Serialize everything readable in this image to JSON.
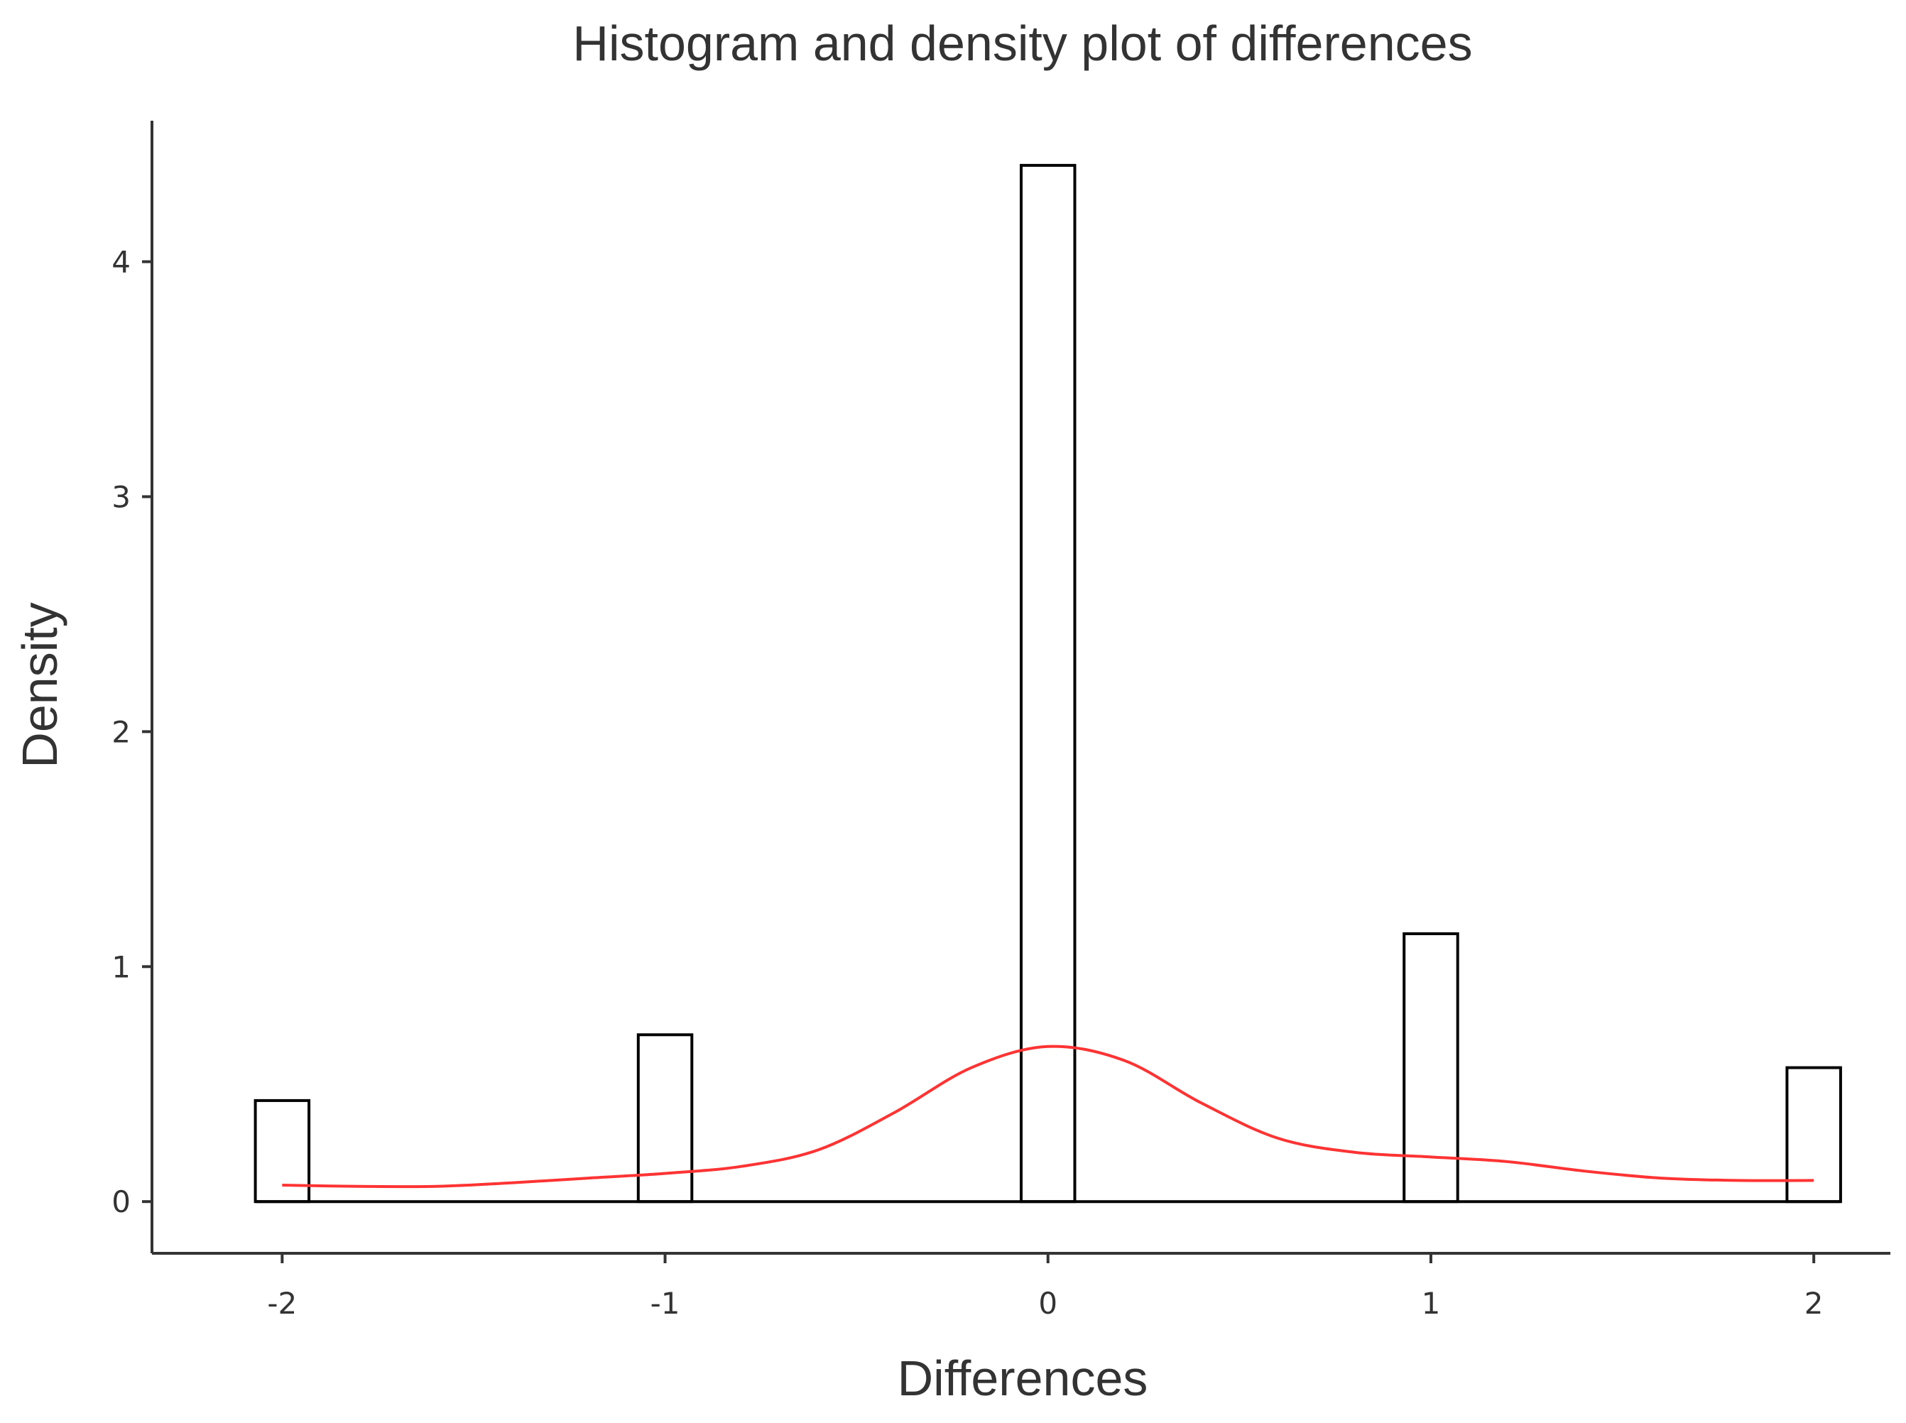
{
  "chart_data": {
    "type": "histogram",
    "title": "Histogram and density plot of differences",
    "xlabel": "Differences",
    "ylabel": "Density",
    "xlim": [
      -2.34,
      2.2
    ],
    "ylim": [
      -0.22,
      4.6
    ],
    "x_ticks": [
      -2,
      -1,
      0,
      1,
      2
    ],
    "x_tick_labels": [
      "-2",
      "-1",
      "0",
      "1",
      "2"
    ],
    "y_ticks": [
      0,
      1,
      2,
      3,
      4
    ],
    "y_tick_labels": [
      "0",
      "1",
      "2",
      "3",
      "4"
    ],
    "bin_width": 0.14,
    "bins": [
      {
        "center": -2.0,
        "density": 0.43
      },
      {
        "center": -1.0,
        "density": 0.71
      },
      {
        "center": 0.0,
        "density": 4.41
      },
      {
        "center": 1.0,
        "density": 1.14
      },
      {
        "center": 2.0,
        "density": 0.57
      }
    ],
    "density_curve": {
      "color": "#ff3333",
      "x": [
        -2.0,
        -1.8,
        -1.6,
        -1.4,
        -1.2,
        -1.0,
        -0.8,
        -0.6,
        -0.4,
        -0.2,
        0.0,
        0.2,
        0.4,
        0.6,
        0.8,
        1.0,
        1.2,
        1.4,
        1.6,
        1.8,
        2.0
      ],
      "y": [
        0.07,
        0.065,
        0.065,
        0.08,
        0.1,
        0.12,
        0.15,
        0.22,
        0.38,
        0.57,
        0.66,
        0.6,
        0.42,
        0.27,
        0.21,
        0.19,
        0.17,
        0.13,
        0.1,
        0.09,
        0.09
      ]
    },
    "grid": false,
    "legend": "none"
  }
}
